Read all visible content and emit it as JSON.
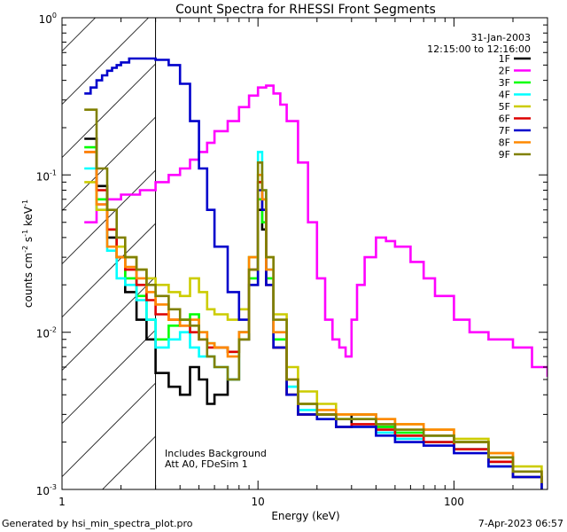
{
  "chart_data": {
    "type": "line",
    "title": "Count Spectra for RHESSI Front Segments",
    "xlabel": "Energy (keV)",
    "ylabel_parts": [
      "counts cm",
      "-2",
      " s",
      "-1",
      " keV",
      "-1"
    ],
    "x_scale": "log",
    "y_scale": "log",
    "xlim": [
      1,
      300
    ],
    "ylim": [
      0.001,
      1
    ],
    "x_tick_labels": [
      {
        "value": 1,
        "label": "1"
      },
      {
        "value": 10,
        "label": "10"
      },
      {
        "value": 100,
        "label": "100"
      }
    ],
    "y_tick_labels": [
      {
        "value": 1,
        "base": "10",
        "exp": "0"
      },
      {
        "value": 0.1,
        "base": "10",
        "exp": "-1"
      },
      {
        "value": 0.01,
        "base": "10",
        "exp": "-2"
      },
      {
        "value": 0.001,
        "base": "10",
        "exp": "-3"
      }
    ],
    "hatched_region_xmax": 3,
    "date": "31-Jan-2003",
    "time_range": "12:15:00 to 12:16:00",
    "annotations": [
      "Includes Background",
      "Att A0, FDeSim 1"
    ],
    "footer_left": "Generated by hsi_min_spectra_plot.pro",
    "footer_right": "7-Apr-2023 06:57",
    "series": [
      {
        "name": "1F",
        "color": "#000000",
        "x": [
          1.3,
          1.5,
          1.7,
          1.9,
          2.1,
          2.4,
          2.7,
          3.0,
          3.5,
          4.0,
          4.5,
          5.0,
          5.5,
          6.0,
          7.0,
          8.0,
          9.0,
          10.0,
          10.5,
          11.0,
          12.0,
          14.0,
          16.0,
          20.0,
          25.0,
          30.0,
          40.0,
          50.0,
          70.0,
          100.0,
          150.0,
          200.0,
          280.0
        ],
        "y": [
          0.17,
          0.085,
          0.04,
          0.03,
          0.018,
          0.012,
          0.009,
          0.0055,
          0.0045,
          0.004,
          0.006,
          0.005,
          0.0035,
          0.004,
          0.005,
          0.009,
          0.02,
          0.06,
          0.045,
          0.02,
          0.008,
          0.004,
          0.003,
          0.003,
          0.0025,
          0.003,
          0.0025,
          0.0022,
          0.0022,
          0.0018,
          0.0015,
          0.0012,
          0.001
        ]
      },
      {
        "name": "2F",
        "color": "#ff00ff",
        "x": [
          1.3,
          1.5,
          1.7,
          2.0,
          2.5,
          3.0,
          3.5,
          4.0,
          4.5,
          5.0,
          5.5,
          6.0,
          7.0,
          8.0,
          9.0,
          10.0,
          11.0,
          12.0,
          13.0,
          14.0,
          16.0,
          18.0,
          20.0,
          22.0,
          24.0,
          26.0,
          28.0,
          30.0,
          32.0,
          35.0,
          40.0,
          45.0,
          50.0,
          60.0,
          70.0,
          80.0,
          100.0,
          120.0,
          150.0,
          200.0,
          250.0,
          300.0
        ],
        "y": [
          0.05,
          0.065,
          0.07,
          0.075,
          0.08,
          0.09,
          0.1,
          0.11,
          0.125,
          0.14,
          0.16,
          0.19,
          0.22,
          0.27,
          0.32,
          0.36,
          0.37,
          0.33,
          0.28,
          0.22,
          0.12,
          0.05,
          0.022,
          0.012,
          0.009,
          0.008,
          0.007,
          0.012,
          0.02,
          0.03,
          0.04,
          0.038,
          0.035,
          0.028,
          0.022,
          0.017,
          0.012,
          0.01,
          0.009,
          0.008,
          0.006,
          0.0052
        ]
      },
      {
        "name": "3F",
        "color": "#00ff00",
        "x": [
          1.3,
          1.5,
          1.7,
          1.9,
          2.1,
          2.4,
          2.7,
          3.0,
          3.5,
          4.0,
          4.5,
          5.0,
          5.5,
          6.0,
          7.0,
          8.0,
          9.0,
          10.0,
          10.5,
          11.0,
          12.0,
          14.0,
          16.0,
          20.0,
          25.0,
          30.0,
          40.0,
          50.0,
          70.0,
          100.0,
          150.0,
          200.0,
          280.0
        ],
        "y": [
          0.15,
          0.07,
          0.045,
          0.03,
          0.022,
          0.017,
          0.012,
          0.009,
          0.011,
          0.012,
          0.013,
          0.01,
          0.0085,
          0.008,
          0.0075,
          0.01,
          0.022,
          0.07,
          0.05,
          0.022,
          0.009,
          0.0045,
          0.0035,
          0.003,
          0.0028,
          0.0028,
          0.0025,
          0.0023,
          0.0022,
          0.002,
          0.0016,
          0.0012,
          0.001
        ]
      },
      {
        "name": "4F",
        "color": "#00ffff",
        "x": [
          1.3,
          1.5,
          1.7,
          1.9,
          2.1,
          2.4,
          2.7,
          3.0,
          3.5,
          4.0,
          4.5,
          5.0,
          5.5,
          6.0,
          7.0,
          8.0,
          9.0,
          10.0,
          10.5,
          11.0,
          12.0,
          14.0,
          16.0,
          20.0,
          25.0,
          30.0,
          40.0,
          50.0,
          70.0,
          100.0,
          150.0,
          200.0,
          280.0
        ],
        "y": [
          0.11,
          0.06,
          0.033,
          0.022,
          0.02,
          0.016,
          0.012,
          0.008,
          0.009,
          0.01,
          0.008,
          0.007,
          0.007,
          0.006,
          0.005,
          0.01,
          0.03,
          0.14,
          0.08,
          0.025,
          0.01,
          0.0045,
          0.0032,
          0.0028,
          0.0025,
          0.0025,
          0.0023,
          0.0021,
          0.002,
          0.0018,
          0.0014,
          0.0012,
          0.001
        ]
      },
      {
        "name": "5F",
        "color": "#cccc00",
        "x": [
          1.3,
          1.5,
          1.7,
          1.9,
          2.1,
          2.4,
          2.7,
          3.0,
          3.5,
          4.0,
          4.5,
          5.0,
          5.5,
          6.0,
          7.0,
          8.0,
          9.0,
          10.0,
          10.5,
          11.0,
          12.0,
          14.0,
          16.0,
          20.0,
          25.0,
          30.0,
          40.0,
          50.0,
          70.0,
          100.0,
          150.0,
          200.0,
          280.0
        ],
        "y": [
          0.09,
          0.06,
          0.045,
          0.035,
          0.03,
          0.025,
          0.022,
          0.02,
          0.018,
          0.017,
          0.022,
          0.018,
          0.014,
          0.013,
          0.012,
          0.014,
          0.03,
          0.09,
          0.07,
          0.03,
          0.013,
          0.006,
          0.0042,
          0.0035,
          0.003,
          0.003,
          0.0028,
          0.0026,
          0.0024,
          0.0021,
          0.0017,
          0.0014,
          0.0011
        ]
      },
      {
        "name": "6F",
        "color": "#dd0000",
        "x": [
          1.3,
          1.5,
          1.7,
          1.9,
          2.1,
          2.4,
          2.7,
          3.0,
          3.5,
          4.0,
          4.5,
          5.0,
          5.5,
          6.0,
          7.0,
          8.0,
          9.0,
          10.0,
          10.5,
          11.0,
          12.0,
          14.0,
          16.0,
          20.0,
          25.0,
          30.0,
          40.0,
          50.0,
          70.0,
          100.0,
          150.0,
          200.0,
          280.0
        ],
        "y": [
          0.14,
          0.08,
          0.045,
          0.03,
          0.025,
          0.02,
          0.016,
          0.013,
          0.012,
          0.011,
          0.01,
          0.009,
          0.008,
          0.008,
          0.0075,
          0.01,
          0.025,
          0.09,
          0.06,
          0.02,
          0.008,
          0.004,
          0.003,
          0.003,
          0.0025,
          0.0026,
          0.0024,
          0.0022,
          0.002,
          0.0018,
          0.0015,
          0.0012,
          0.001
        ]
      },
      {
        "name": "7F",
        "color": "#0000cc",
        "x": [
          1.3,
          1.4,
          1.5,
          1.6,
          1.7,
          1.8,
          1.9,
          2.0,
          2.2,
          2.5,
          3.0,
          3.5,
          4.0,
          4.5,
          5.0,
          5.5,
          6.0,
          7.0,
          8.0,
          9.0,
          10.0,
          10.5,
          11.0,
          12.0,
          14.0,
          16.0,
          20.0,
          25.0,
          30.0,
          40.0,
          50.0,
          70.0,
          100.0,
          150.0,
          200.0,
          280.0
        ],
        "y": [
          0.33,
          0.36,
          0.4,
          0.43,
          0.46,
          0.48,
          0.5,
          0.52,
          0.55,
          0.55,
          0.54,
          0.5,
          0.38,
          0.22,
          0.11,
          0.06,
          0.035,
          0.018,
          0.012,
          0.02,
          0.08,
          0.06,
          0.02,
          0.008,
          0.004,
          0.003,
          0.0028,
          0.0025,
          0.0025,
          0.0022,
          0.002,
          0.0019,
          0.0017,
          0.0014,
          0.0012,
          0.001
        ]
      },
      {
        "name": "8F",
        "color": "#ff8800",
        "x": [
          1.3,
          1.5,
          1.7,
          1.9,
          2.1,
          2.4,
          2.7,
          3.0,
          3.5,
          4.0,
          4.5,
          5.0,
          5.5,
          6.0,
          7.0,
          8.0,
          9.0,
          10.0,
          10.5,
          11.0,
          12.0,
          14.0,
          16.0,
          20.0,
          25.0,
          30.0,
          40.0,
          50.0,
          70.0,
          100.0,
          150.0,
          200.0,
          280.0
        ],
        "y": [
          0.14,
          0.065,
          0.035,
          0.03,
          0.026,
          0.022,
          0.018,
          0.015,
          0.012,
          0.011,
          0.012,
          0.01,
          0.0085,
          0.008,
          0.007,
          0.01,
          0.03,
          0.1,
          0.07,
          0.025,
          0.01,
          0.005,
          0.0035,
          0.0032,
          0.003,
          0.003,
          0.0028,
          0.0026,
          0.0024,
          0.002,
          0.0017,
          0.0013,
          0.0011
        ]
      },
      {
        "name": "9F",
        "color": "#808000",
        "x": [
          1.3,
          1.5,
          1.7,
          1.9,
          2.1,
          2.4,
          2.7,
          3.0,
          3.5,
          4.0,
          4.5,
          5.0,
          5.5,
          6.0,
          7.0,
          8.0,
          9.0,
          10.0,
          10.5,
          11.0,
          12.0,
          14.0,
          16.0,
          20.0,
          25.0,
          30.0,
          40.0,
          50.0,
          70.0,
          100.0,
          150.0,
          200.0,
          280.0
        ],
        "y": [
          0.26,
          0.11,
          0.06,
          0.04,
          0.03,
          0.025,
          0.02,
          0.017,
          0.014,
          0.012,
          0.011,
          0.009,
          0.007,
          0.006,
          0.005,
          0.009,
          0.025,
          0.12,
          0.08,
          0.03,
          0.012,
          0.005,
          0.0035,
          0.003,
          0.0028,
          0.0028,
          0.0026,
          0.0024,
          0.0022,
          0.002,
          0.0016,
          0.0013,
          0.0011
        ]
      }
    ]
  }
}
